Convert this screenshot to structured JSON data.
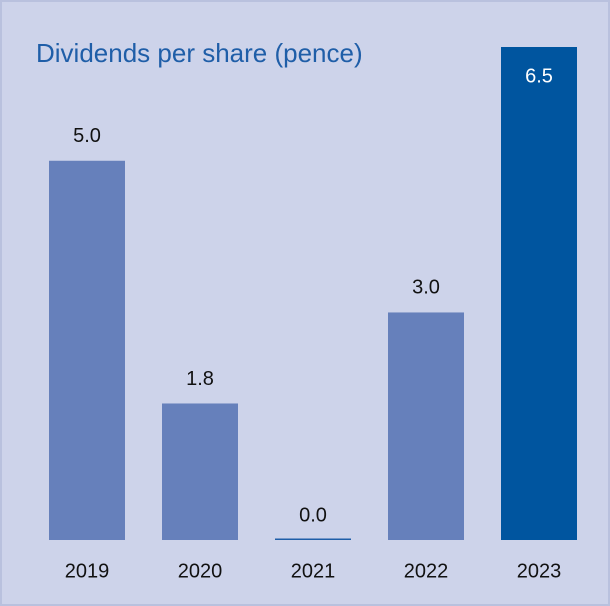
{
  "chart_data": {
    "type": "bar",
    "title": "Dividends per share (pence)",
    "categories": [
      "2019",
      "2020",
      "2021",
      "2022",
      "2023"
    ],
    "values": [
      5.0,
      1.8,
      0.0,
      3.0,
      6.5
    ],
    "value_labels": [
      "5.0",
      "1.8",
      "0.0",
      "3.0",
      "6.5"
    ],
    "colors": [
      "#6680bb",
      "#6680bb",
      "#1f5ea8",
      "#6680bb",
      "#00559f"
    ]
  }
}
